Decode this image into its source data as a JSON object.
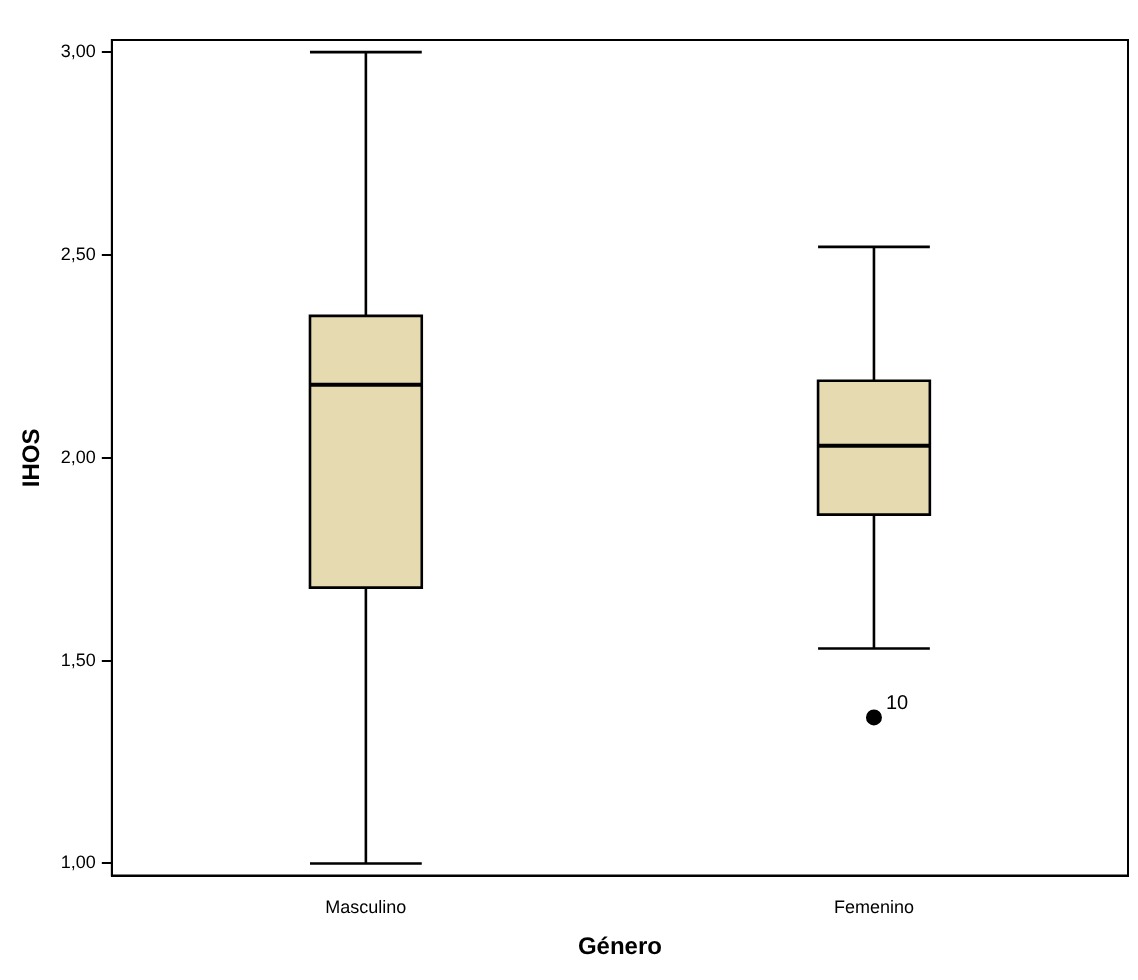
{
  "chart_data": {
    "type": "box",
    "xlabel": "Género",
    "ylabel": "IHOS",
    "categories": [
      "Masculino",
      "Femenino"
    ],
    "color": "#e6dab0",
    "boxes": [
      {
        "low": 1.0,
        "q1": 1.68,
        "median": 2.18,
        "q3": 2.35,
        "high": 3.0
      },
      {
        "low": 1.53,
        "q1": 1.86,
        "median": 2.03,
        "q3": 2.19,
        "high": 2.52,
        "outliers": [
          1.36
        ]
      }
    ],
    "ylim": [
      0.97,
      3.03
    ],
    "yticks": [
      {
        "value": 1,
        "label": "1,00"
      },
      {
        "value": 1.5,
        "label": "1,50"
      },
      {
        "value": 2,
        "label": "2,00"
      },
      {
        "value": 2.5,
        "label": "2,50"
      },
      {
        "value": 3,
        "label": "3,00"
      }
    ],
    "annotations": [
      "10"
    ]
  }
}
